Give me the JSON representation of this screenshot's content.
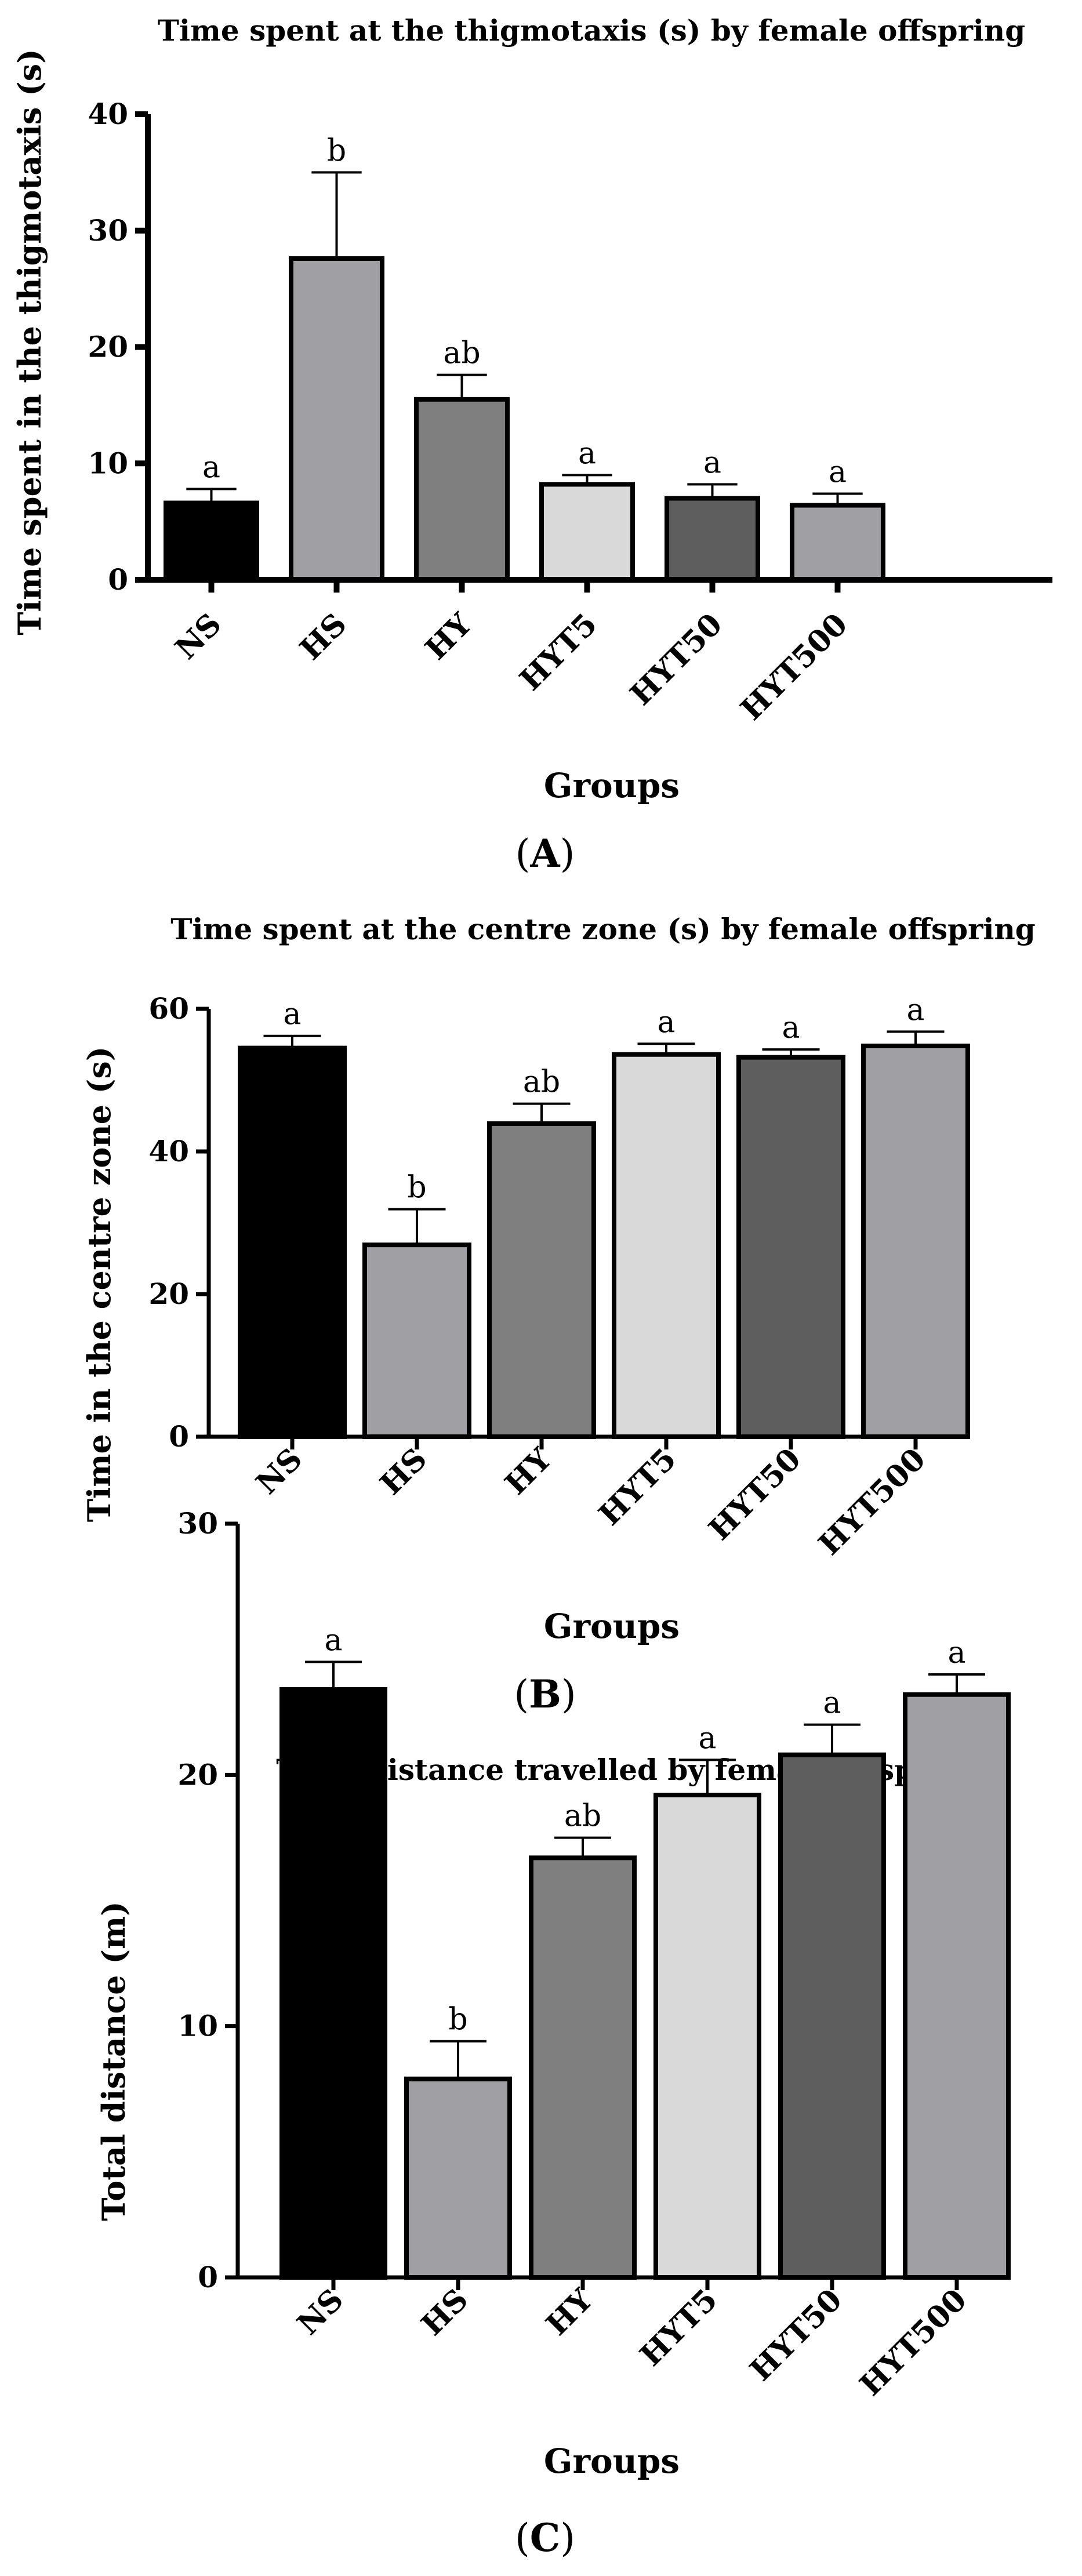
{
  "chart_data": [
    {
      "type": "bar",
      "title": "Time spent at the thigmotaxis (s) by female offspring",
      "ylabel": "Time spent in the thigmotaxis (s)",
      "xlabel": "Groups",
      "panel": "A",
      "categories": [
        "NS",
        "HS",
        "HY",
        "HYT5",
        "HYT50",
        "HYT500"
      ],
      "values": [
        6.6,
        27.6,
        15.5,
        8.2,
        7.0,
        6.4
      ],
      "errors": [
        1.2,
        7.4,
        2.1,
        0.8,
        1.2,
        1.0
      ],
      "significance": [
        "a",
        "b",
        "ab",
        "a",
        "a",
        "a"
      ],
      "colors": [
        "#000000",
        "#a0a0a4",
        "#7f7f7f",
        "#d9d9d9",
        "#5e5e5e",
        "#a0a0a4"
      ],
      "ylim": [
        0,
        40
      ],
      "yticks": [
        "0",
        "10",
        "20",
        "30",
        "40"
      ]
    },
    {
      "type": "bar",
      "title": "Time spent at the centre zone (s) by female offspring",
      "ylabel": "Time in the centre zone (s)",
      "xlabel": "Groups",
      "panel": "B",
      "categories": [
        "NS",
        "HS",
        "HY",
        "HYT5",
        "HYT50",
        "HYT500"
      ],
      "values": [
        54.5,
        26.9,
        43.9,
        53.6,
        53.2,
        54.8
      ],
      "errors": [
        1.7,
        5.0,
        2.8,
        1.5,
        1.1,
        2.0
      ],
      "significance": [
        "a",
        "b",
        "ab",
        "a",
        "a",
        "a"
      ],
      "colors": [
        "#000000",
        "#a0a0a4",
        "#7f7f7f",
        "#d9d9d9",
        "#5e5e5e",
        "#a0a0a4"
      ],
      "ylim": [
        0,
        60
      ],
      "yticks": [
        "0",
        "20",
        "40",
        "60"
      ]
    },
    {
      "type": "bar",
      "title": "Total distance travelled by female offspring",
      "ylabel": "Total distance (m)",
      "xlabel": "Groups",
      "panel": "C",
      "categories": [
        "NS",
        "HS",
        "HY",
        "HYT5",
        "HYT50",
        "HYT500"
      ],
      "values": [
        23.4,
        7.9,
        16.7,
        19.2,
        20.8,
        23.2
      ],
      "errors": [
        1.1,
        1.5,
        0.8,
        1.4,
        1.2,
        0.8
      ],
      "significance": [
        "a",
        "b",
        "ab",
        "a",
        "a",
        "a"
      ],
      "colors": [
        "#000000",
        "#a0a0a4",
        "#7f7f7f",
        "#d9d9d9",
        "#5e5e5e",
        "#a0a0a4"
      ],
      "ylim": [
        0,
        30
      ],
      "yticks": [
        "0",
        "10",
        "20",
        "30"
      ]
    }
  ]
}
